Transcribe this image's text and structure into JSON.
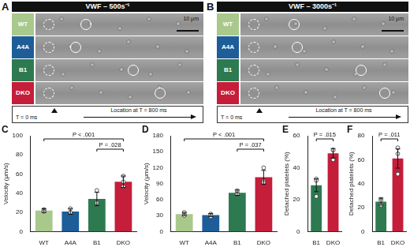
{
  "image_panels": [
    {
      "panel": "A",
      "title": "VWF – 500s⁻¹",
      "rows": [
        {
          "label": "WT",
          "color": "#a9c98c"
        },
        {
          "label": "A4A",
          "color": "#1d5d98"
        },
        {
          "label": "B1",
          "color": "#2d7a50"
        },
        {
          "label": "DKO",
          "color": "#c41e3a"
        }
      ],
      "scale_bar": "10 μm",
      "start_label": "T = 0 ms",
      "end_label": "Location at T = 800 ms"
    },
    {
      "panel": "B",
      "title": "VWF – 3000s⁻¹",
      "rows": [
        {
          "label": "WT",
          "color": "#a9c98c"
        },
        {
          "label": "A4A",
          "color": "#1d5d98"
        },
        {
          "label": "B1",
          "color": "#2d7a50"
        },
        {
          "label": "DKO",
          "color": "#c41e3a"
        }
      ],
      "scale_bar": "10 μm",
      "start_label": "T = 0 ms",
      "end_label": "Location at T = 800 ms"
    }
  ],
  "chart_data": [
    {
      "panel": "C",
      "type": "bar",
      "y_label": "Velocity (μm/s)",
      "categories": [
        "WT",
        "A4A",
        "B1",
        "DKO"
      ],
      "colors": [
        "#a9c98c",
        "#1d5d98",
        "#2d7a50",
        "#c41e3a"
      ],
      "values": [
        22,
        21,
        34,
        52
      ],
      "errors": [
        2,
        3,
        7,
        6
      ],
      "points": [
        [
          21,
          22,
          23
        ],
        [
          20,
          24,
          19
        ],
        [
          30,
          29,
          43
        ],
        [
          47,
          58,
          52
        ]
      ],
      "ylim": [
        0,
        100
      ],
      "yticks": [
        0,
        20,
        40,
        60,
        80,
        100
      ],
      "grid": false,
      "annotations": [
        {
          "from": "WT",
          "to": "DKO",
          "label": "P < .001"
        },
        {
          "from": "B1",
          "to": "DKO",
          "label": "P = .028"
        }
      ]
    },
    {
      "panel": "D",
      "type": "bar",
      "y_label": "Velocity (μm/s)",
      "categories": [
        "WT",
        "A4A",
        "B1",
        "DKO"
      ],
      "colors": [
        "#a9c98c",
        "#1d5d98",
        "#2d7a50",
        "#c41e3a"
      ],
      "values": [
        33,
        31,
        73,
        102
      ],
      "errors": [
        3,
        3,
        5,
        13
      ],
      "points": [
        [
          30,
          36,
          33
        ],
        [
          28,
          33,
          32
        ],
        [
          70,
          77,
          73
        ],
        [
          92,
          120,
          95
        ]
      ],
      "ylim": [
        0,
        180
      ],
      "yticks": [
        0,
        30,
        60,
        90,
        120,
        150,
        180
      ],
      "grid": false,
      "annotations": [
        {
          "from": "WT",
          "to": "DKO",
          "label": "P < .001"
        },
        {
          "from": "B1",
          "to": "DKO",
          "label": "P = .037"
        }
      ]
    },
    {
      "panel": "E",
      "type": "bar",
      "y_label": "Detached platelets (%)",
      "categories": [
        "B1",
        "DKO"
      ],
      "colors": [
        "#2d7a50",
        "#c41e3a"
      ],
      "values": [
        29,
        49
      ],
      "errors": [
        4,
        3
      ],
      "points": [
        [
          22,
          32,
          33
        ],
        [
          45,
          51,
          51
        ]
      ],
      "ylim": [
        0,
        60
      ],
      "yticks": [
        0,
        20,
        40,
        60
      ],
      "grid": false,
      "annotations": [
        {
          "from": "B1",
          "to": "DKO",
          "label": "P = .015"
        }
      ]
    },
    {
      "panel": "F",
      "type": "bar",
      "y_label": "Detached platelets (%)",
      "categories": [
        "B1",
        "DKO"
      ],
      "colors": [
        "#2d7a50",
        "#c41e3a"
      ],
      "values": [
        25,
        61
      ],
      "errors": [
        3,
        8
      ],
      "points": [
        [
          22,
          26,
          27
        ],
        [
          65,
          70,
          48
        ]
      ],
      "ylim": [
        0,
        80
      ],
      "yticks": [
        0,
        20,
        40,
        60,
        80
      ],
      "grid": false,
      "annotations": [
        {
          "from": "B1",
          "to": "DKO",
          "label": "P = .011"
        }
      ]
    }
  ]
}
